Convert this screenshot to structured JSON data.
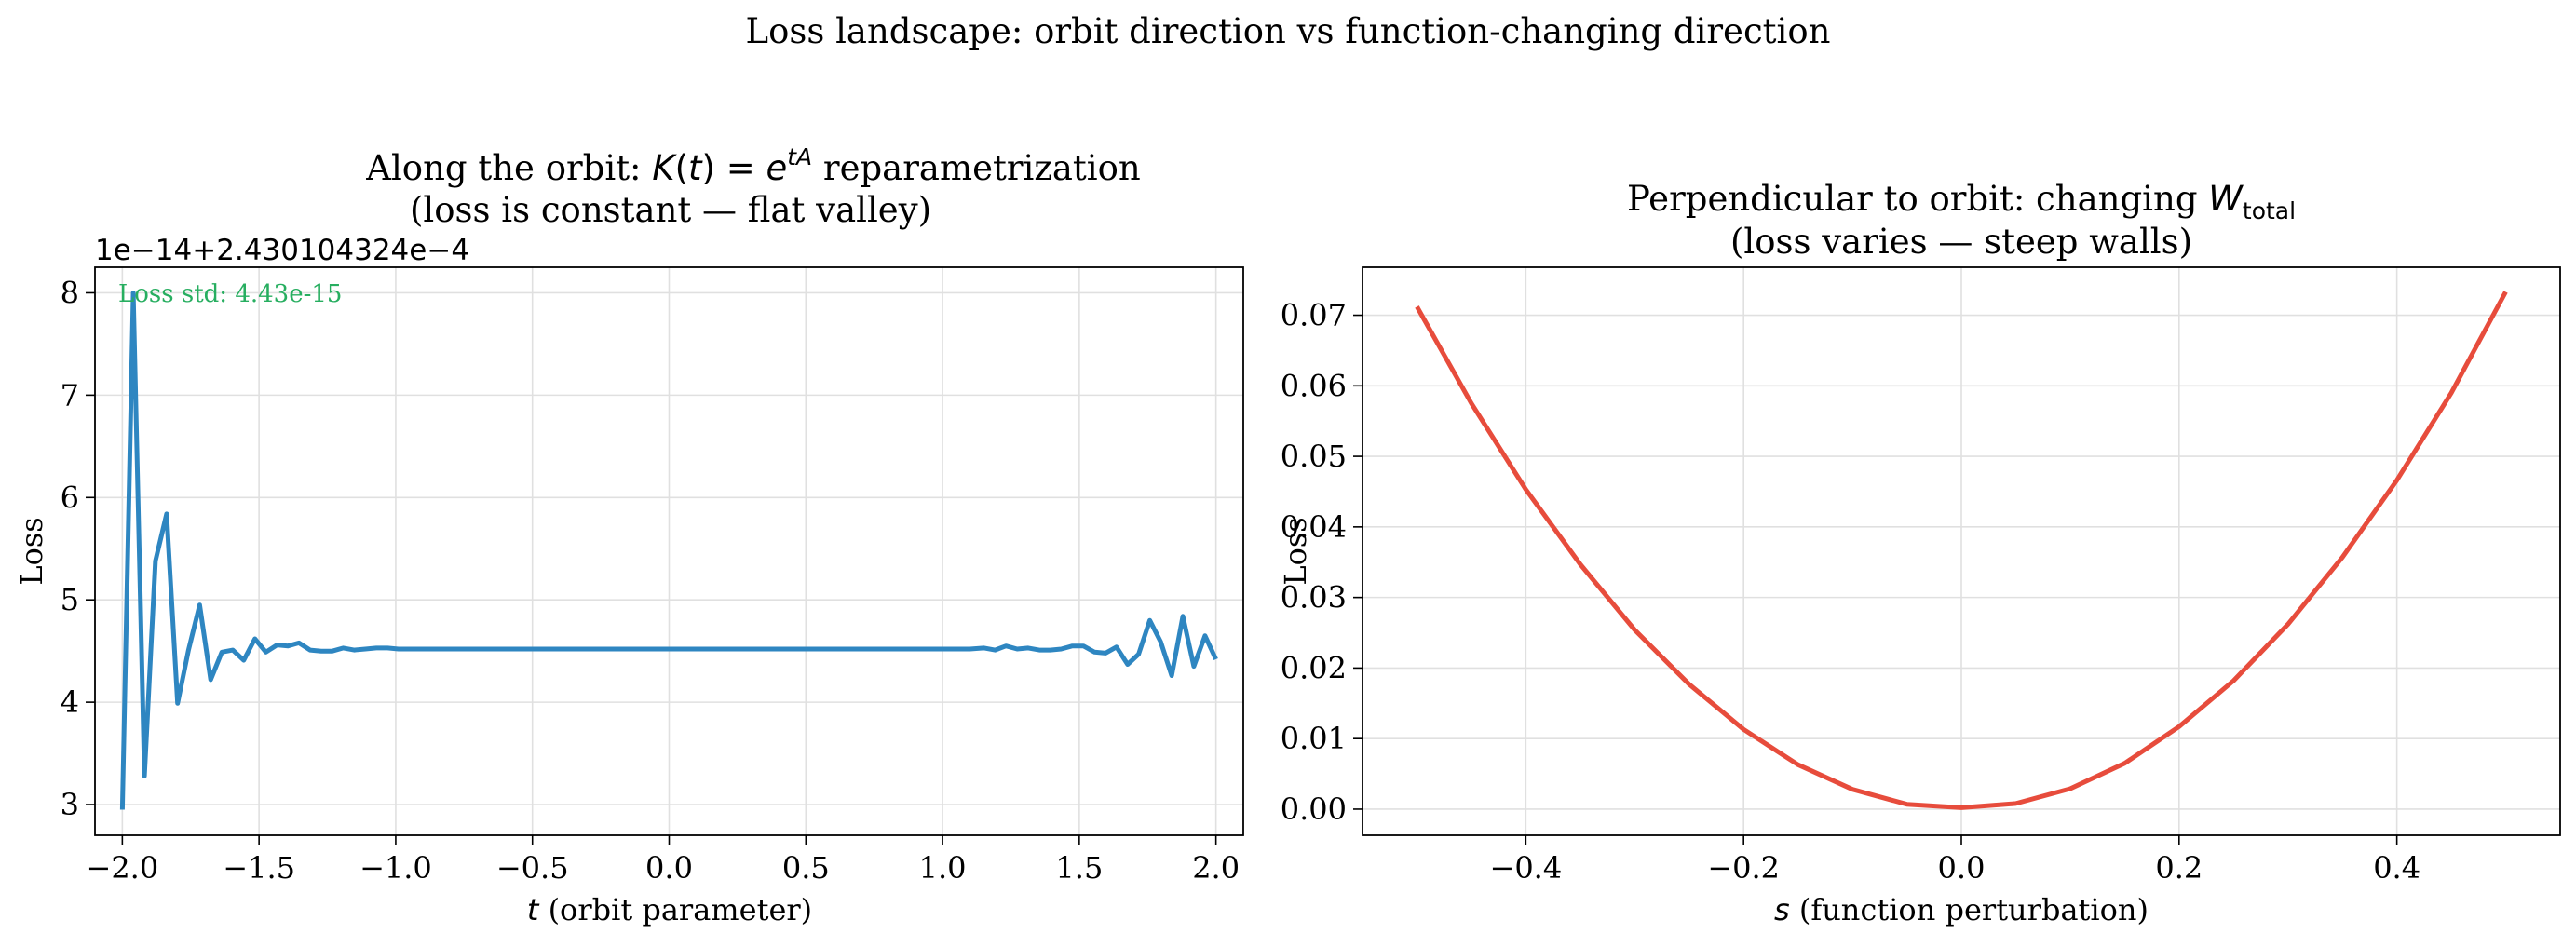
{
  "figure": {
    "suptitle": "Loss landscape: orbit direction vs function-changing direction"
  },
  "chart_data": [
    {
      "type": "line",
      "title_line1_prefix": "Along the orbit: ",
      "title_line1_math": "K(t) = e^{tA}",
      "title_line1_suffix": " reparametrization",
      "title_line2": "(loss is constant — flat valley)",
      "xlabel_math": "t",
      "xlabel_suffix": " (orbit parameter)",
      "ylabel": "Loss",
      "offset_text": "1e−14+2.430104324e−4",
      "annotation": "Loss std: 4.43e-15",
      "annotation_color": "#27ae60",
      "line_color": "#2e86c1",
      "xlim": [
        -2.1,
        2.1
      ],
      "ylim": [
        2.7,
        8.25
      ],
      "xticks": [
        -2.0,
        -1.5,
        -1.0,
        -0.5,
        0.0,
        0.5,
        1.0,
        1.5,
        2.0
      ],
      "xtick_labels": [
        "−2.0",
        "−1.5",
        "−1.0",
        "−0.5",
        "0.0",
        "0.5",
        "1.0",
        "1.5",
        "2.0"
      ],
      "yticks": [
        3,
        4,
        5,
        6,
        7,
        8
      ],
      "ytick_labels": [
        "3",
        "4",
        "5",
        "6",
        "7",
        "8"
      ],
      "grid": true,
      "series": [
        {
          "x": [
            -2.0,
            -1.96,
            -1.919,
            -1.879,
            -1.838,
            -1.798,
            -1.758,
            -1.717,
            -1.677,
            -1.636,
            -1.596,
            -1.556,
            -1.515,
            -1.475,
            -1.434,
            -1.394,
            -1.354,
            -1.313,
            -1.273,
            -1.232,
            -1.192,
            -1.152,
            -1.111,
            -1.071,
            -1.03,
            -0.99,
            -0.95,
            -0.9,
            -0.8,
            -0.7,
            -0.6,
            -0.5,
            -0.4,
            -0.3,
            -0.2,
            -0.1,
            0.0,
            0.1,
            0.2,
            0.3,
            0.4,
            0.5,
            0.6,
            0.7,
            0.8,
            0.9,
            1.0,
            1.1,
            1.152,
            1.192,
            1.232,
            1.273,
            1.313,
            1.354,
            1.394,
            1.434,
            1.475,
            1.515,
            1.556,
            1.596,
            1.636,
            1.677,
            1.717,
            1.758,
            1.798,
            1.838,
            1.879,
            1.919,
            1.96,
            2.0
          ],
          "y": [
            2.95,
            8.0,
            3.28,
            5.38,
            5.84,
            3.99,
            4.51,
            4.95,
            4.22,
            4.49,
            4.51,
            4.41,
            4.62,
            4.49,
            4.56,
            4.55,
            4.58,
            4.51,
            4.5,
            4.5,
            4.53,
            4.51,
            4.52,
            4.53,
            4.53,
            4.52,
            4.52,
            4.52,
            4.52,
            4.52,
            4.52,
            4.52,
            4.52,
            4.52,
            4.52,
            4.52,
            4.52,
            4.52,
            4.52,
            4.52,
            4.52,
            4.52,
            4.52,
            4.52,
            4.52,
            4.52,
            4.52,
            4.52,
            4.53,
            4.51,
            4.55,
            4.52,
            4.53,
            4.51,
            4.51,
            4.52,
            4.55,
            4.55,
            4.49,
            4.48,
            4.54,
            4.37,
            4.47,
            4.8,
            4.59,
            4.26,
            4.84,
            4.35,
            4.65,
            4.42
          ]
        }
      ]
    },
    {
      "type": "line",
      "title_line1_prefix": "Perpendicular to orbit: changing ",
      "title_line1_math": "W_total",
      "title_line2": "(loss varies — steep walls)",
      "xlabel_math": "s",
      "xlabel_suffix": " (function perturbation)",
      "ylabel": "Loss",
      "line_color": "#e74c3c",
      "xlim": [
        -0.55,
        0.55
      ],
      "ylim": [
        -0.0037,
        0.0768
      ],
      "xticks": [
        -0.4,
        -0.2,
        0.0,
        0.2,
        0.4
      ],
      "xtick_labels": [
        "−0.4",
        "−0.2",
        "0.0",
        "0.2",
        "0.4"
      ],
      "yticks": [
        0.0,
        0.01,
        0.02,
        0.03,
        0.04,
        0.05,
        0.06,
        0.07
      ],
      "ytick_labels": [
        "0.00",
        "0.01",
        "0.02",
        "0.03",
        "0.04",
        "0.05",
        "0.06",
        "0.07"
      ],
      "grid": true,
      "series": [
        {
          "x": [
            -0.5,
            -0.45,
            -0.4,
            -0.35,
            -0.3,
            -0.25,
            -0.2,
            -0.15,
            -0.1,
            -0.05,
            0.0,
            0.05,
            0.1,
            0.15,
            0.2,
            0.25,
            0.3,
            0.35,
            0.4,
            0.45,
            0.5
          ],
          "y": [
            0.0712,
            0.0575,
            0.0453,
            0.0347,
            0.0254,
            0.0177,
            0.0113,
            0.0063,
            0.0028,
            0.0007,
            0.0002,
            0.0008,
            0.0029,
            0.0065,
            0.0117,
            0.0182,
            0.0262,
            0.0357,
            0.0466,
            0.059,
            0.0733
          ]
        }
      ]
    }
  ]
}
